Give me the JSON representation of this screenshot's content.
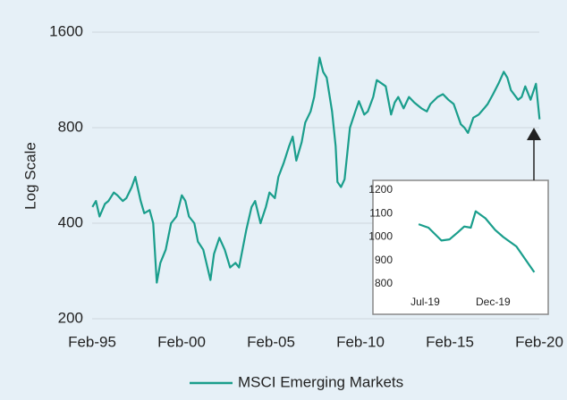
{
  "chart_data": [
    {
      "type": "line",
      "y_label": "Log Scale",
      "log_y": true,
      "grid": true,
      "legend": "bottom",
      "xlim": [
        1995.083,
        2020.083
      ],
      "xticks": [
        {
          "value": 1995.083,
          "label": "Feb-95"
        },
        {
          "value": 2000.083,
          "label": "Feb-00"
        },
        {
          "value": 2005.083,
          "label": "Feb-05"
        },
        {
          "value": 2010.083,
          "label": "Feb-10"
        },
        {
          "value": 2015.083,
          "label": "Feb-15"
        },
        {
          "value": 2020.083,
          "label": "Feb-20"
        }
      ],
      "ylim": [
        200,
        1600
      ],
      "yticks": [
        200,
        400,
        800,
        1600
      ],
      "x": [
        1995.1,
        1995.3,
        1995.5,
        1995.8,
        1996.0,
        1996.3,
        1996.5,
        1996.8,
        1997.0,
        1997.3,
        1997.5,
        1997.8,
        1998.0,
        1998.3,
        1998.5,
        1998.7,
        1998.9,
        1999.2,
        1999.5,
        1999.8,
        2000.1,
        2000.3,
        2000.5,
        2000.8,
        2001.0,
        2001.3,
        2001.7,
        2001.9,
        2002.2,
        2002.5,
        2002.8,
        2003.1,
        2003.3,
        2003.7,
        2004.0,
        2004.2,
        2004.5,
        2004.8,
        2005.0,
        2005.3,
        2005.5,
        2005.8,
        2006.1,
        2006.3,
        2006.5,
        2006.8,
        2007.0,
        2007.3,
        2007.5,
        2007.8,
        2008.0,
        2008.2,
        2008.5,
        2008.7,
        2008.8,
        2009.0,
        2009.2,
        2009.5,
        2009.8,
        2010.0,
        2010.3,
        2010.5,
        2010.8,
        2011.0,
        2011.3,
        2011.5,
        2011.8,
        2012.0,
        2012.2,
        2012.5,
        2012.8,
        2013.1,
        2013.5,
        2013.8,
        2014.0,
        2014.4,
        2014.7,
        2015.0,
        2015.3,
        2015.7,
        2015.9,
        2016.1,
        2016.4,
        2016.7,
        2017.0,
        2017.2,
        2017.5,
        2017.8,
        2018.1,
        2018.3,
        2018.5,
        2018.9,
        2019.1,
        2019.3,
        2019.6,
        2019.9,
        2020.1
      ],
      "series": [
        {
          "name": "MSCI Emerging Markets",
          "color": "#1a9e8c",
          "values": [
            450,
            470,
            420,
            460,
            470,
            500,
            490,
            470,
            480,
            520,
            560,
            470,
            430,
            440,
            400,
            260,
            300,
            330,
            400,
            420,
            490,
            470,
            420,
            400,
            350,
            330,
            265,
            320,
            360,
            330,
            290,
            300,
            290,
            380,
            450,
            470,
            400,
            450,
            500,
            480,
            560,
            620,
            700,
            750,
            630,
            720,
            830,
            900,
            1000,
            1330,
            1200,
            1150,
            900,
            700,
            540,
            520,
            550,
            800,
            900,
            970,
            880,
            900,
            1000,
            1130,
            1100,
            1080,
            880,
            960,
            1000,
            920,
            1000,
            960,
            920,
            900,
            950,
            1000,
            1020,
            980,
            950,
            820,
            800,
            770,
            860,
            880,
            920,
            950,
            1020,
            1100,
            1200,
            1150,
            1050,
            980,
            1000,
            1080,
            980,
            1100,
            850
          ]
        }
      ]
    },
    {
      "type": "line",
      "xlim": [
        2019.3,
        2020.25
      ],
      "xticks": [
        {
          "value": 2019.5,
          "label": "Jul-19"
        },
        {
          "value": 2019.917,
          "label": "Dec-19"
        }
      ],
      "ylim": [
        800,
        1200
      ],
      "yticks": [
        800,
        900,
        1000,
        1100,
        1200
      ],
      "x": [
        2019.46,
        2019.52,
        2019.6,
        2019.65,
        2019.7,
        2019.74,
        2019.78,
        2019.81,
        2019.87,
        2019.93,
        2019.98,
        2020.06,
        2020.17
      ],
      "series": [
        {
          "color": "#1a9e8c",
          "values": [
            1055,
            1040,
            985,
            990,
            1020,
            1045,
            1040,
            1110,
            1080,
            1030,
            1000,
            960,
            850
          ]
        }
      ]
    }
  ]
}
